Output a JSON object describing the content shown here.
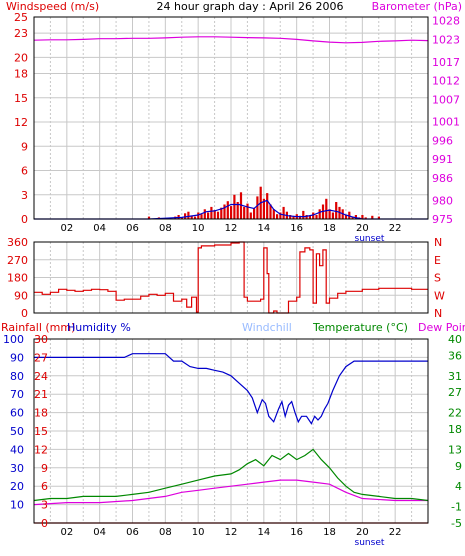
{
  "chart_data": [
    {
      "type": "line",
      "title": "24 hour graph day : April 26 2006",
      "ylabel": "Windspeed (m/s)",
      "y2label": "Barometer (hPa)",
      "x_ticks": [
        "02",
        "04",
        "06",
        "08",
        "10",
        "12",
        "14",
        "16",
        "18",
        "20",
        "22"
      ],
      "sunset_label": "sunset",
      "xlim": [
        0,
        24
      ],
      "ylim": [
        0,
        25
      ],
      "y_ticks": [
        0,
        3,
        6,
        9,
        12,
        15,
        18,
        20,
        23,
        25
      ],
      "y2lim": [
        975,
        1029
      ],
      "y2_ticks": [
        975,
        980,
        986,
        991,
        996,
        1001,
        1007,
        1012,
        1017,
        1023,
        1028
      ],
      "grid": true,
      "colors": {
        "windspeed": "#dd0000",
        "gust": "#0000cc",
        "barometer": "#dd00dd"
      },
      "series": [
        {
          "axis": "y2",
          "x": [
            0,
            1,
            2,
            3,
            4,
            5,
            6,
            7,
            8,
            9,
            10,
            11,
            12,
            13,
            14,
            15,
            16,
            17,
            18,
            19,
            20,
            21,
            22,
            23,
            24
          ],
          "values": [
            1022.8,
            1022.9,
            1022.9,
            1023.0,
            1023.2,
            1023.2,
            1023.3,
            1023.3,
            1023.4,
            1023.6,
            1023.7,
            1023.7,
            1023.6,
            1023.5,
            1023.4,
            1023.3,
            1023.0,
            1022.6,
            1022.3,
            1022.1,
            1022.2,
            1022.5,
            1022.6,
            1022.8,
            1022.7
          ]
        },
        {
          "axis": "y",
          "style": "bars",
          "x": [
            7.0,
            7.6,
            8.6,
            8.8,
            9.0,
            9.2,
            9.4,
            9.6,
            9.8,
            10.0,
            10.2,
            10.4,
            10.6,
            10.8,
            11.0,
            11.2,
            11.4,
            11.6,
            11.8,
            12.0,
            12.2,
            12.4,
            12.6,
            12.8,
            13.0,
            13.2,
            13.4,
            13.6,
            13.8,
            14.0,
            14.2,
            14.4,
            14.6,
            14.8,
            15.0,
            15.2,
            15.4,
            15.6,
            15.8,
            16.0,
            16.2,
            16.4,
            16.6,
            16.8,
            17.0,
            17.2,
            17.4,
            17.6,
            17.8,
            18.0,
            18.2,
            18.4,
            18.6,
            18.8,
            19.0,
            19.2,
            19.4,
            19.6,
            19.8,
            20.0,
            20.2,
            20.6,
            21.0
          ],
          "values": [
            0.3,
            0.2,
            0.3,
            0.5,
            0.2,
            0.7,
            0.9,
            0.4,
            0.3,
            0.8,
            0.6,
            1.2,
            0.8,
            1.5,
            1.1,
            0.9,
            1.4,
            1.8,
            2.2,
            1.6,
            3.0,
            2.1,
            3.3,
            1.5,
            1.9,
            0.8,
            1.3,
            2.8,
            4.0,
            2.5,
            3.2,
            1.8,
            1.2,
            0.6,
            0.8,
            1.5,
            0.9,
            0.5,
            0.3,
            0.6,
            0.4,
            1.0,
            0.5,
            0.4,
            0.8,
            0.5,
            1.2,
            1.8,
            2.5,
            1.2,
            0.8,
            2.1,
            1.5,
            1.2,
            0.5,
            0.9,
            0.3,
            0.5,
            0.2,
            0.5,
            0.2,
            0.4,
            0.3
          ]
        },
        {
          "axis": "y",
          "x": [
            0,
            7.0,
            8.0,
            9.0,
            10.0,
            10.5,
            11.0,
            11.5,
            12.0,
            12.5,
            13.0,
            13.4,
            13.8,
            14.2,
            14.6,
            15.0,
            15.5,
            16.0,
            16.5,
            17.0,
            17.5,
            18.0,
            18.5,
            19.0,
            19.5,
            20.0,
            24
          ],
          "values": [
            0,
            0,
            0.1,
            0.2,
            0.5,
            0.9,
            1.0,
            1.3,
            1.8,
            1.8,
            1.5,
            1.3,
            2.0,
            2.3,
            1.2,
            0.6,
            0.4,
            0.3,
            0.3,
            0.5,
            0.9,
            1.1,
            0.9,
            0.5,
            0.2,
            0,
            0
          ]
        }
      ]
    },
    {
      "type": "line",
      "ylim": [
        0,
        360
      ],
      "y_ticks": [
        0,
        90,
        180,
        270,
        360
      ],
      "y_tick_labels": [
        "0",
        "90",
        "180",
        "270",
        "360"
      ],
      "y2_labels": [
        "N",
        "W",
        "S",
        "E",
        "N"
      ],
      "xlim": [
        0,
        24
      ],
      "grid": true,
      "colors": {
        "wind_direction": "#dd0000"
      },
      "series": [
        {
          "x": [
            0,
            0.5,
            1.0,
            1.5,
            2.0,
            2.5,
            3.0,
            3.5,
            4.0,
            4.5,
            5.0,
            5.5,
            6.0,
            6.5,
            7.0,
            7.5,
            8.0,
            8.5,
            9.0,
            9.3,
            9.6,
            9.9,
            10.0,
            10.2,
            11.0,
            12.0,
            12.5,
            12.6,
            12.8,
            13.0,
            13.2,
            13.4,
            13.6,
            13.8,
            14.0,
            14.2,
            14.3,
            14.5,
            14.6,
            14.8,
            15.0,
            15.5,
            16.0,
            16.2,
            16.5,
            16.8,
            17.0,
            17.2,
            17.4,
            17.6,
            17.8,
            18.0,
            18.5,
            19.0,
            20.0,
            21.0,
            22.0,
            23.0,
            24.0
          ],
          "values": [
            105,
            95,
            105,
            120,
            115,
            110,
            115,
            120,
            118,
            110,
            65,
            70,
            70,
            85,
            95,
            90,
            100,
            60,
            70,
            30,
            80,
            5,
            330,
            340,
            345,
            355,
            360,
            360,
            80,
            60,
            60,
            60,
            60,
            70,
            330,
            200,
            0,
            0,
            10,
            0,
            0,
            60,
            80,
            310,
            330,
            320,
            50,
            300,
            240,
            320,
            50,
            75,
            100,
            110,
            120,
            125,
            125,
            120,
            120
          ]
        }
      ]
    },
    {
      "type": "line",
      "ylabel": "Rainfall (mm)",
      "ylabel2": "Humidity %",
      "windchill_label": "Windchill",
      "temperature_label": "Temperature (°C)",
      "dewpoint_label": "Dew Point",
      "x_ticks": [
        "02",
        "04",
        "06",
        "08",
        "10",
        "12",
        "14",
        "16",
        "18",
        "20",
        "22"
      ],
      "sunset_label": "sunset",
      "xlim": [
        0,
        24
      ],
      "rain_ticks": [
        0,
        3,
        6,
        9,
        12,
        15,
        18,
        21,
        24,
        27,
        30
      ],
      "humidity_ticks": [
        10,
        20,
        30,
        40,
        50,
        60,
        70,
        80,
        90,
        100
      ],
      "humidity_tick_positions": [
        1,
        2,
        3,
        4,
        5,
        6,
        7,
        8,
        9,
        10
      ],
      "temperature_ticks": [
        -5,
        -1,
        4,
        9,
        13,
        18,
        22,
        27,
        31,
        36,
        40
      ],
      "templim": [
        -5,
        40
      ],
      "grid": true,
      "colors": {
        "rainfall": "#dd0000",
        "humidity": "#0000cc",
        "windchill": "#99bbff",
        "temperature": "#008800",
        "dewpoint": "#dd00dd"
      },
      "series": [
        {
          "name": "Rainfall",
          "x": [
            0,
            24
          ],
          "values": [
            0,
            0
          ]
        },
        {
          "name": "Humidity %",
          "x": [
            0,
            2,
            4,
            5.5,
            6.0,
            7.0,
            8.0,
            8.5,
            9.0,
            9.5,
            10.0,
            10.5,
            11.0,
            11.5,
            12.0,
            12.5,
            13.0,
            13.3,
            13.6,
            13.9,
            14.1,
            14.3,
            14.6,
            14.9,
            15.1,
            15.3,
            15.5,
            15.7,
            15.9,
            16.1,
            16.3,
            16.6,
            16.9,
            17.1,
            17.3,
            17.5,
            17.7,
            17.9,
            18.2,
            18.6,
            19.0,
            19.5,
            20.0,
            21.0,
            22.0,
            24.0
          ],
          "values": [
            90,
            90,
            90,
            90,
            92,
            92,
            92,
            88,
            88,
            85,
            84,
            84,
            83,
            82,
            80,
            76,
            72,
            68,
            60,
            67,
            65,
            58,
            55,
            62,
            66,
            58,
            64,
            66,
            60,
            55,
            58,
            58,
            54,
            58,
            56,
            58,
            62,
            65,
            72,
            80,
            85,
            88,
            88,
            88,
            88,
            88
          ]
        },
        {
          "name": "Temperature (°C)",
          "x": [
            0,
            1,
            2,
            3,
            4,
            5,
            6,
            7,
            8,
            9,
            10,
            11,
            12,
            12.5,
            13.0,
            13.5,
            14.0,
            14.5,
            15.0,
            15.5,
            16.0,
            16.5,
            17.0,
            17.5,
            18.0,
            18.5,
            19.0,
            19.5,
            20.0,
            21.0,
            22.0,
            23.0,
            24.0
          ],
          "values": [
            0.5,
            1.0,
            1.0,
            1.5,
            1.5,
            1.5,
            2.0,
            2.5,
            3.5,
            4.5,
            5.5,
            6.5,
            7.0,
            8.0,
            9.5,
            10.5,
            9.0,
            11.5,
            10.5,
            12.0,
            10.5,
            11.5,
            13.0,
            10.5,
            8.5,
            6.0,
            4.0,
            2.5,
            2.0,
            1.5,
            1.0,
            1.0,
            0.5
          ]
        },
        {
          "name": "Dew Point",
          "x": [
            0,
            2,
            4,
            6,
            8,
            9,
            10,
            11,
            12,
            13,
            14,
            15,
            16,
            17,
            18,
            19,
            20,
            22,
            24
          ],
          "values": [
            -0.5,
            0,
            0,
            0.5,
            1.5,
            2.5,
            3.0,
            3.5,
            4.0,
            4.5,
            5.0,
            5.5,
            5.5,
            5.0,
            4.5,
            2.5,
            1.0,
            0.5,
            0.5
          ]
        }
      ]
    }
  ]
}
